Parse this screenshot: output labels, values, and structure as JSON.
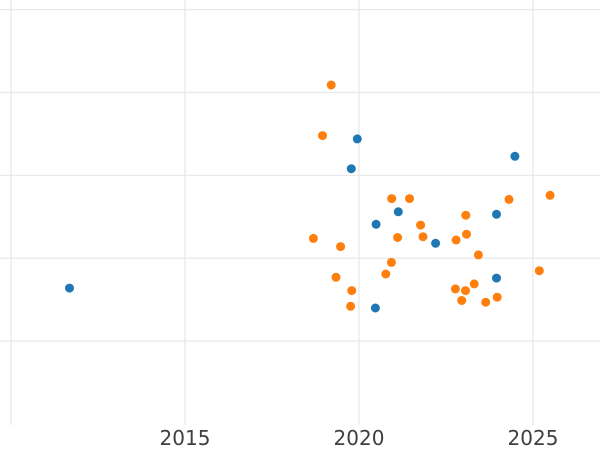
{
  "chart": {
    "background_color": "#ffffff",
    "grid_color": "#e9e9e9",
    "tick_label_color": "#3f3f3f",
    "series_blue_color": "#1f77b4",
    "series_orange_color": "#ff7f0e"
  },
  "chart_data": {
    "type": "scatter",
    "title": "",
    "xlabel": "",
    "ylabel": "",
    "grid": true,
    "legend_position": "none",
    "marker_diameter_px": 9,
    "x_tick_labels": [
      "2015",
      "2020",
      "2025"
    ],
    "x_ticks": [
      2015,
      2020,
      2025
    ],
    "x_gridlines_years": [
      2010,
      2015,
      2020,
      2025
    ],
    "xlim": [
      2009.68,
      2026.93
    ],
    "y_gridline_units": [
      1,
      2,
      3,
      4,
      5
    ],
    "ylim": [
      0,
      5.13
    ],
    "y_axis_labels": "none visible (axis labels cropped out of view); y values are in unlabeled gridline units estimated from pixel positions",
    "series": [
      {
        "name": "blue",
        "color": "#1f77b4",
        "points": [
          [
            2011.68,
            1.64
          ],
          [
            2019.78,
            3.08
          ],
          [
            2019.95,
            3.44
          ],
          [
            2020.47,
            1.4
          ],
          [
            2020.49,
            2.41
          ],
          [
            2021.13,
            2.56
          ],
          [
            2022.2,
            2.18
          ],
          [
            2023.95,
            2.53
          ],
          [
            2023.95,
            1.76
          ],
          [
            2024.48,
            3.23
          ]
        ]
      },
      {
        "name": "orange",
        "color": "#ff7f0e",
        "points": [
          [
            2018.69,
            2.24
          ],
          [
            2018.95,
            3.48
          ],
          [
            2019.2,
            4.09
          ],
          [
            2019.34,
            1.77
          ],
          [
            2019.47,
            2.14
          ],
          [
            2019.76,
            1.42
          ],
          [
            2019.79,
            1.61
          ],
          [
            2020.77,
            1.81
          ],
          [
            2020.93,
            1.95
          ],
          [
            2020.94,
            2.72
          ],
          [
            2021.11,
            2.25
          ],
          [
            2021.45,
            2.72
          ],
          [
            2021.77,
            2.4
          ],
          [
            2021.84,
            2.26
          ],
          [
            2022.77,
            1.63
          ],
          [
            2022.79,
            2.22
          ],
          [
            2022.95,
            1.49
          ],
          [
            2023.06,
            1.61
          ],
          [
            2023.07,
            2.52
          ],
          [
            2023.09,
            2.29
          ],
          [
            2023.31,
            1.69
          ],
          [
            2023.43,
            2.04
          ],
          [
            2023.64,
            1.47
          ],
          [
            2023.97,
            1.53
          ],
          [
            2024.31,
            2.71
          ],
          [
            2025.18,
            1.85
          ],
          [
            2025.49,
            2.76
          ]
        ]
      }
    ]
  }
}
